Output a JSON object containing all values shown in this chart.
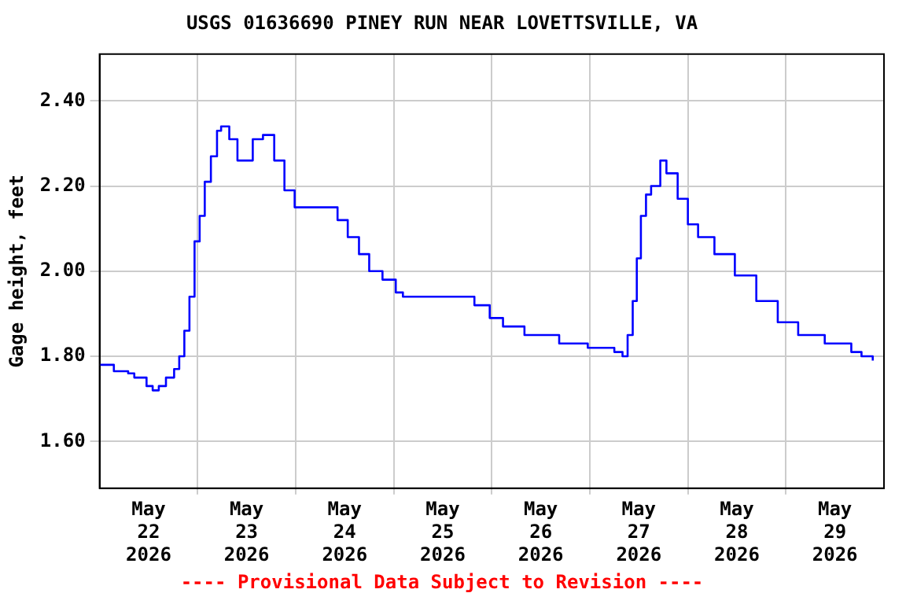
{
  "chart_data": {
    "type": "step",
    "title": "USGS 01636690 PINEY RUN NEAR LOVETTSVILLE, VA",
    "ylabel": "Gage height, feet",
    "annotations": [
      "---- Provisional Data Subject to Revision ----"
    ],
    "x": [
      "2026-05-22T00:00",
      "2026-05-22T03:30",
      "2026-05-22T07:00",
      "2026-05-22T08:30",
      "2026-05-22T11:30",
      "2026-05-22T13:00",
      "2026-05-22T14:30",
      "2026-05-22T16:15",
      "2026-05-22T18:15",
      "2026-05-22T19:30",
      "2026-05-22T20:45",
      "2026-05-22T22:00",
      "2026-05-22T23:15",
      "2026-05-23T00:30",
      "2026-05-23T01:45",
      "2026-05-23T03:15",
      "2026-05-23T04:45",
      "2026-05-23T05:45",
      "2026-05-23T07:45",
      "2026-05-23T09:45",
      "2026-05-23T11:30",
      "2026-05-23T13:30",
      "2026-05-23T16:00",
      "2026-05-23T18:45",
      "2026-05-23T21:15",
      "2026-05-23T23:45",
      "2026-05-24T02:30",
      "2026-05-24T07:30",
      "2026-05-24T10:15",
      "2026-05-24T12:45",
      "2026-05-24T15:30",
      "2026-05-24T18:00",
      "2026-05-24T21:15",
      "2026-05-25T00:30",
      "2026-05-25T02:15",
      "2026-05-25T09:30",
      "2026-05-25T16:00",
      "2026-05-25T19:45",
      "2026-05-25T23:30",
      "2026-05-26T02:45",
      "2026-05-26T08:00",
      "2026-05-26T16:30",
      "2026-05-26T23:30",
      "2026-05-27T06:00",
      "2026-05-27T08:00",
      "2026-05-27T09:15",
      "2026-05-27T10:30",
      "2026-05-27T11:30",
      "2026-05-27T12:30",
      "2026-05-27T13:45",
      "2026-05-27T15:00",
      "2026-05-27T17:15",
      "2026-05-27T18:45",
      "2026-05-27T21:30",
      "2026-05-28T00:00",
      "2026-05-28T02:30",
      "2026-05-28T06:30",
      "2026-05-28T11:30",
      "2026-05-28T16:45",
      "2026-05-28T22:00",
      "2026-05-29T03:00",
      "2026-05-29T09:30",
      "2026-05-29T16:00",
      "2026-05-29T18:30",
      "2026-05-29T21:15"
    ],
    "series": [
      {
        "color": "#0000ff",
        "values": [
          1.78,
          1.765,
          1.76,
          1.75,
          1.73,
          1.72,
          1.73,
          1.75,
          1.77,
          1.8,
          1.86,
          1.94,
          2.07,
          2.13,
          2.21,
          2.27,
          2.33,
          2.34,
          2.31,
          2.26,
          2.26,
          2.31,
          2.32,
          2.26,
          2.19,
          2.15,
          2.15,
          2.15,
          2.12,
          2.08,
          2.04,
          2.0,
          1.98,
          1.95,
          1.94,
          1.94,
          1.94,
          1.92,
          1.89,
          1.87,
          1.85,
          1.83,
          1.82,
          1.81,
          1.8,
          1.85,
          1.93,
          2.03,
          2.13,
          2.18,
          2.2,
          2.26,
          2.23,
          2.17,
          2.11,
          2.08,
          2.04,
          1.99,
          1.93,
          1.88,
          1.85,
          1.83,
          1.81,
          1.8,
          1.79
        ]
      }
    ],
    "xlim": [
      "2026-05-22T00:00",
      "2026-05-30T00:00"
    ],
    "xticks": [
      {
        "value": "2026-05-22T12:00",
        "label": "May 22 2026"
      },
      {
        "value": "2026-05-23T00:00",
        "label": null
      },
      {
        "value": "2026-05-23T12:00",
        "label": "May 23 2026"
      },
      {
        "value": "2026-05-24T00:00",
        "label": null
      },
      {
        "value": "2026-05-24T12:00",
        "label": "May 24 2026"
      },
      {
        "value": "2026-05-25T00:00",
        "label": null
      },
      {
        "value": "2026-05-25T12:00",
        "label": "May 25 2026"
      },
      {
        "value": "2026-05-26T00:00",
        "label": null
      },
      {
        "value": "2026-05-26T12:00",
        "label": "May 26 2026"
      },
      {
        "value": "2026-05-27T00:00",
        "label": null
      },
      {
        "value": "2026-05-27T12:00",
        "label": "May 27 2026"
      },
      {
        "value": "2026-05-28T00:00",
        "label": null
      },
      {
        "value": "2026-05-28T12:00",
        "label": "May 28 2026"
      },
      {
        "value": "2026-05-29T00:00",
        "label": null
      },
      {
        "value": "2026-05-29T12:00",
        "label": "May 29 2026"
      }
    ],
    "ylim": [
      1.49,
      2.51
    ],
    "yticks": [
      {
        "value": 1.6,
        "label": "1.60"
      },
      {
        "value": 1.8,
        "label": "1.80"
      },
      {
        "value": 2.0,
        "label": "2.00"
      },
      {
        "value": 2.2,
        "label": "2.20"
      },
      {
        "value": 2.4,
        "label": "2.40"
      }
    ],
    "grid": true
  }
}
